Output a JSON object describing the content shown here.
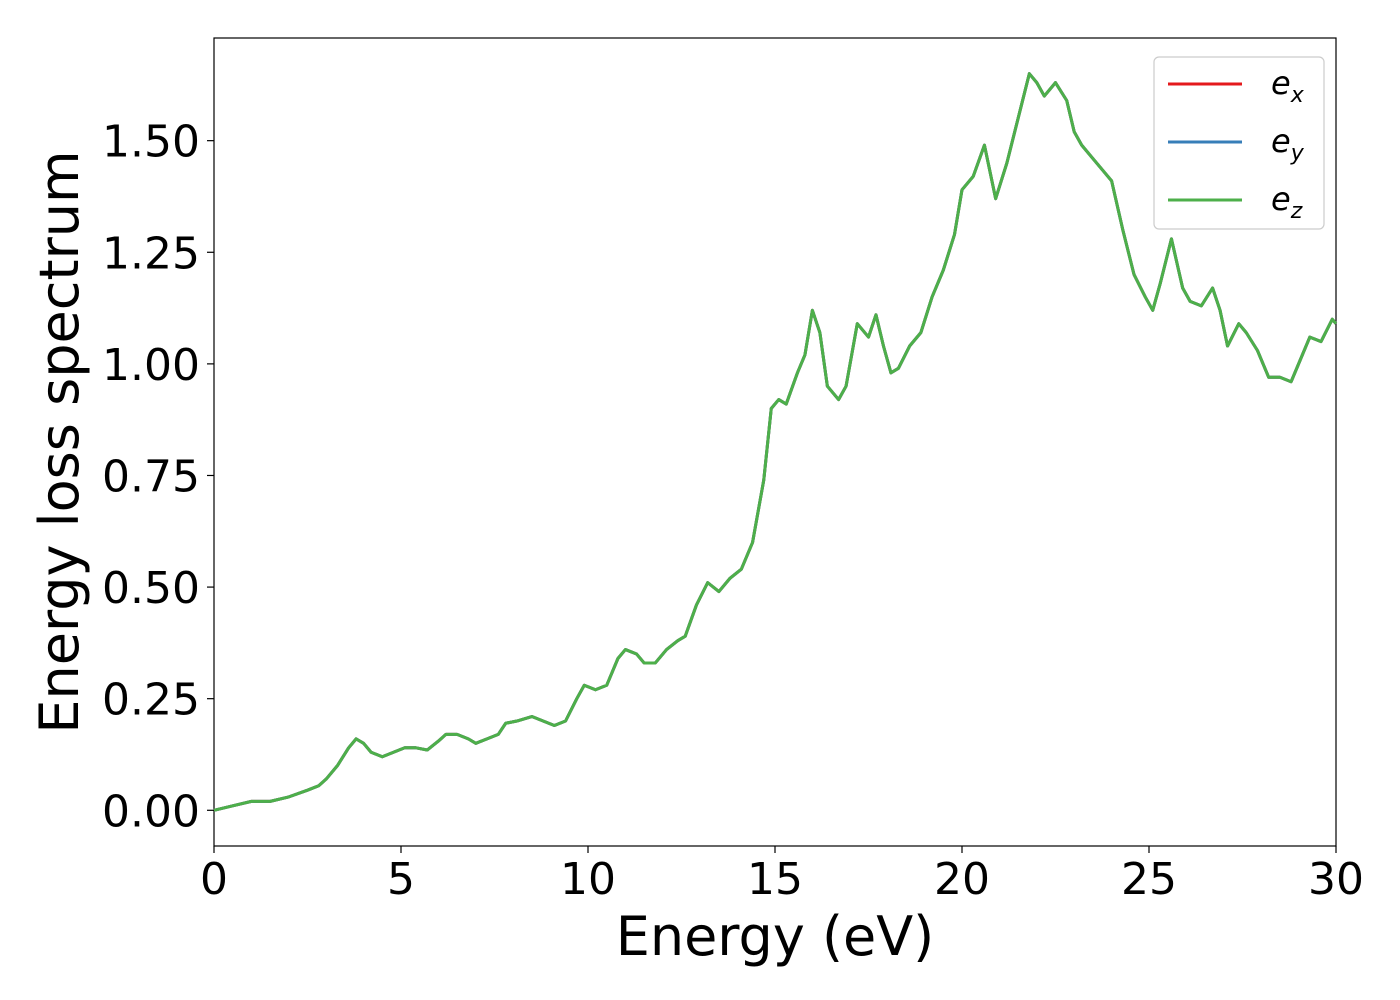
{
  "chart_data": {
    "type": "line",
    "xlabel": "Energy (eV)",
    "ylabel": "Energy loss spectrum",
    "x": [
      0,
      0.5,
      1.0,
      1.5,
      2.0,
      2.5,
      2.8,
      3.0,
      3.3,
      3.6,
      3.8,
      4.0,
      4.2,
      4.5,
      4.8,
      5.1,
      5.4,
      5.7,
      6.0,
      6.2,
      6.5,
      6.8,
      7.0,
      7.3,
      7.6,
      7.8,
      8.1,
      8.5,
      8.8,
      9.1,
      9.4,
      9.7,
      9.9,
      10.2,
      10.5,
      10.8,
      11.0,
      11.3,
      11.5,
      11.8,
      12.1,
      12.4,
      12.6,
      12.9,
      13.2,
      13.5,
      13.8,
      14.1,
      14.4,
      14.7,
      14.9,
      15.1,
      15.3,
      15.6,
      15.8,
      16.0,
      16.2,
      16.4,
      16.7,
      16.9,
      17.2,
      17.5,
      17.7,
      17.9,
      18.1,
      18.3,
      18.6,
      18.9,
      19.2,
      19.5,
      19.8,
      20.0,
      20.3,
      20.6,
      20.9,
      21.2,
      21.5,
      21.8,
      22.0,
      22.2,
      22.5,
      22.8,
      23.0,
      23.2,
      23.5,
      23.8,
      24.0,
      24.3,
      24.6,
      24.9,
      25.1,
      25.3,
      25.6,
      25.9,
      26.1,
      26.4,
      26.7,
      26.9,
      27.1,
      27.4,
      27.6,
      27.9,
      28.2,
      28.5,
      28.8,
      29.0,
      29.3,
      29.6,
      29.9,
      30.0
    ],
    "series": [
      {
        "name": "ex",
        "color": "#e41a1c",
        "values": [
          0.0,
          0.01,
          0.02,
          0.02,
          0.03,
          0.045,
          0.055,
          0.07,
          0.1,
          0.14,
          0.16,
          0.15,
          0.13,
          0.12,
          0.13,
          0.14,
          0.14,
          0.135,
          0.155,
          0.17,
          0.17,
          0.16,
          0.15,
          0.16,
          0.17,
          0.195,
          0.2,
          0.21,
          0.2,
          0.19,
          0.2,
          0.25,
          0.28,
          0.27,
          0.28,
          0.34,
          0.36,
          0.35,
          0.33,
          0.33,
          0.36,
          0.38,
          0.39,
          0.46,
          0.51,
          0.49,
          0.52,
          0.54,
          0.6,
          0.74,
          0.9,
          0.92,
          0.91,
          0.98,
          1.02,
          1.12,
          1.07,
          0.95,
          0.92,
          0.95,
          1.09,
          1.06,
          1.11,
          1.04,
          0.98,
          0.99,
          1.04,
          1.07,
          1.15,
          1.21,
          1.29,
          1.39,
          1.42,
          1.49,
          1.37,
          1.45,
          1.55,
          1.65,
          1.63,
          1.6,
          1.63,
          1.59,
          1.52,
          1.49,
          1.46,
          1.43,
          1.41,
          1.3,
          1.2,
          1.15,
          1.12,
          1.18,
          1.28,
          1.17,
          1.14,
          1.13,
          1.17,
          1.12,
          1.04,
          1.09,
          1.07,
          1.03,
          0.97,
          0.97,
          0.96,
          1.0,
          1.06,
          1.05,
          1.1,
          1.09
        ]
      },
      {
        "name": "ey",
        "color": "#377eb8",
        "values": [
          0.0,
          0.01,
          0.02,
          0.02,
          0.03,
          0.045,
          0.055,
          0.07,
          0.1,
          0.14,
          0.16,
          0.15,
          0.13,
          0.12,
          0.13,
          0.14,
          0.14,
          0.135,
          0.155,
          0.17,
          0.17,
          0.16,
          0.15,
          0.16,
          0.17,
          0.195,
          0.2,
          0.21,
          0.2,
          0.19,
          0.2,
          0.25,
          0.28,
          0.27,
          0.28,
          0.34,
          0.36,
          0.35,
          0.33,
          0.33,
          0.36,
          0.38,
          0.39,
          0.46,
          0.51,
          0.49,
          0.52,
          0.54,
          0.6,
          0.74,
          0.9,
          0.92,
          0.91,
          0.98,
          1.02,
          1.12,
          1.07,
          0.95,
          0.92,
          0.95,
          1.09,
          1.06,
          1.11,
          1.04,
          0.98,
          0.99,
          1.04,
          1.07,
          1.15,
          1.21,
          1.29,
          1.39,
          1.42,
          1.49,
          1.37,
          1.45,
          1.55,
          1.65,
          1.63,
          1.6,
          1.63,
          1.59,
          1.52,
          1.49,
          1.46,
          1.43,
          1.41,
          1.3,
          1.2,
          1.15,
          1.12,
          1.18,
          1.28,
          1.17,
          1.14,
          1.13,
          1.17,
          1.12,
          1.04,
          1.09,
          1.07,
          1.03,
          0.97,
          0.97,
          0.96,
          1.0,
          1.06,
          1.05,
          1.1,
          1.09
        ]
      },
      {
        "name": "ez",
        "color": "#4daf4a",
        "values": [
          0.0,
          0.01,
          0.02,
          0.02,
          0.03,
          0.045,
          0.055,
          0.07,
          0.1,
          0.14,
          0.16,
          0.15,
          0.13,
          0.12,
          0.13,
          0.14,
          0.14,
          0.135,
          0.155,
          0.17,
          0.17,
          0.16,
          0.15,
          0.16,
          0.17,
          0.195,
          0.2,
          0.21,
          0.2,
          0.19,
          0.2,
          0.25,
          0.28,
          0.27,
          0.28,
          0.34,
          0.36,
          0.35,
          0.33,
          0.33,
          0.36,
          0.38,
          0.39,
          0.46,
          0.51,
          0.49,
          0.52,
          0.54,
          0.6,
          0.74,
          0.9,
          0.92,
          0.91,
          0.98,
          1.02,
          1.12,
          1.07,
          0.95,
          0.92,
          0.95,
          1.09,
          1.06,
          1.11,
          1.04,
          0.98,
          0.99,
          1.04,
          1.07,
          1.15,
          1.21,
          1.29,
          1.39,
          1.42,
          1.49,
          1.37,
          1.45,
          1.55,
          1.65,
          1.63,
          1.6,
          1.63,
          1.59,
          1.52,
          1.49,
          1.46,
          1.43,
          1.41,
          1.3,
          1.2,
          1.15,
          1.12,
          1.18,
          1.28,
          1.17,
          1.14,
          1.13,
          1.17,
          1.12,
          1.04,
          1.09,
          1.07,
          1.03,
          0.97,
          0.97,
          0.96,
          1.0,
          1.06,
          1.05,
          1.1,
          1.09
        ]
      }
    ],
    "xlim": [
      0,
      30
    ],
    "xticks": [
      0,
      5,
      10,
      15,
      20,
      25,
      30
    ],
    "ylim": [
      -0.08,
      1.73
    ],
    "yticks": [
      {
        "value": 0,
        "label": "0.00"
      },
      {
        "value": 0.25,
        "label": "0.25"
      },
      {
        "value": 0.5,
        "label": "0.50"
      },
      {
        "value": 0.75,
        "label": "0.75"
      },
      {
        "value": 1,
        "label": "1.00"
      },
      {
        "value": 1.25,
        "label": "1.25"
      },
      {
        "value": 1.5,
        "label": "1.50"
      }
    ],
    "legend": "upper right"
  }
}
